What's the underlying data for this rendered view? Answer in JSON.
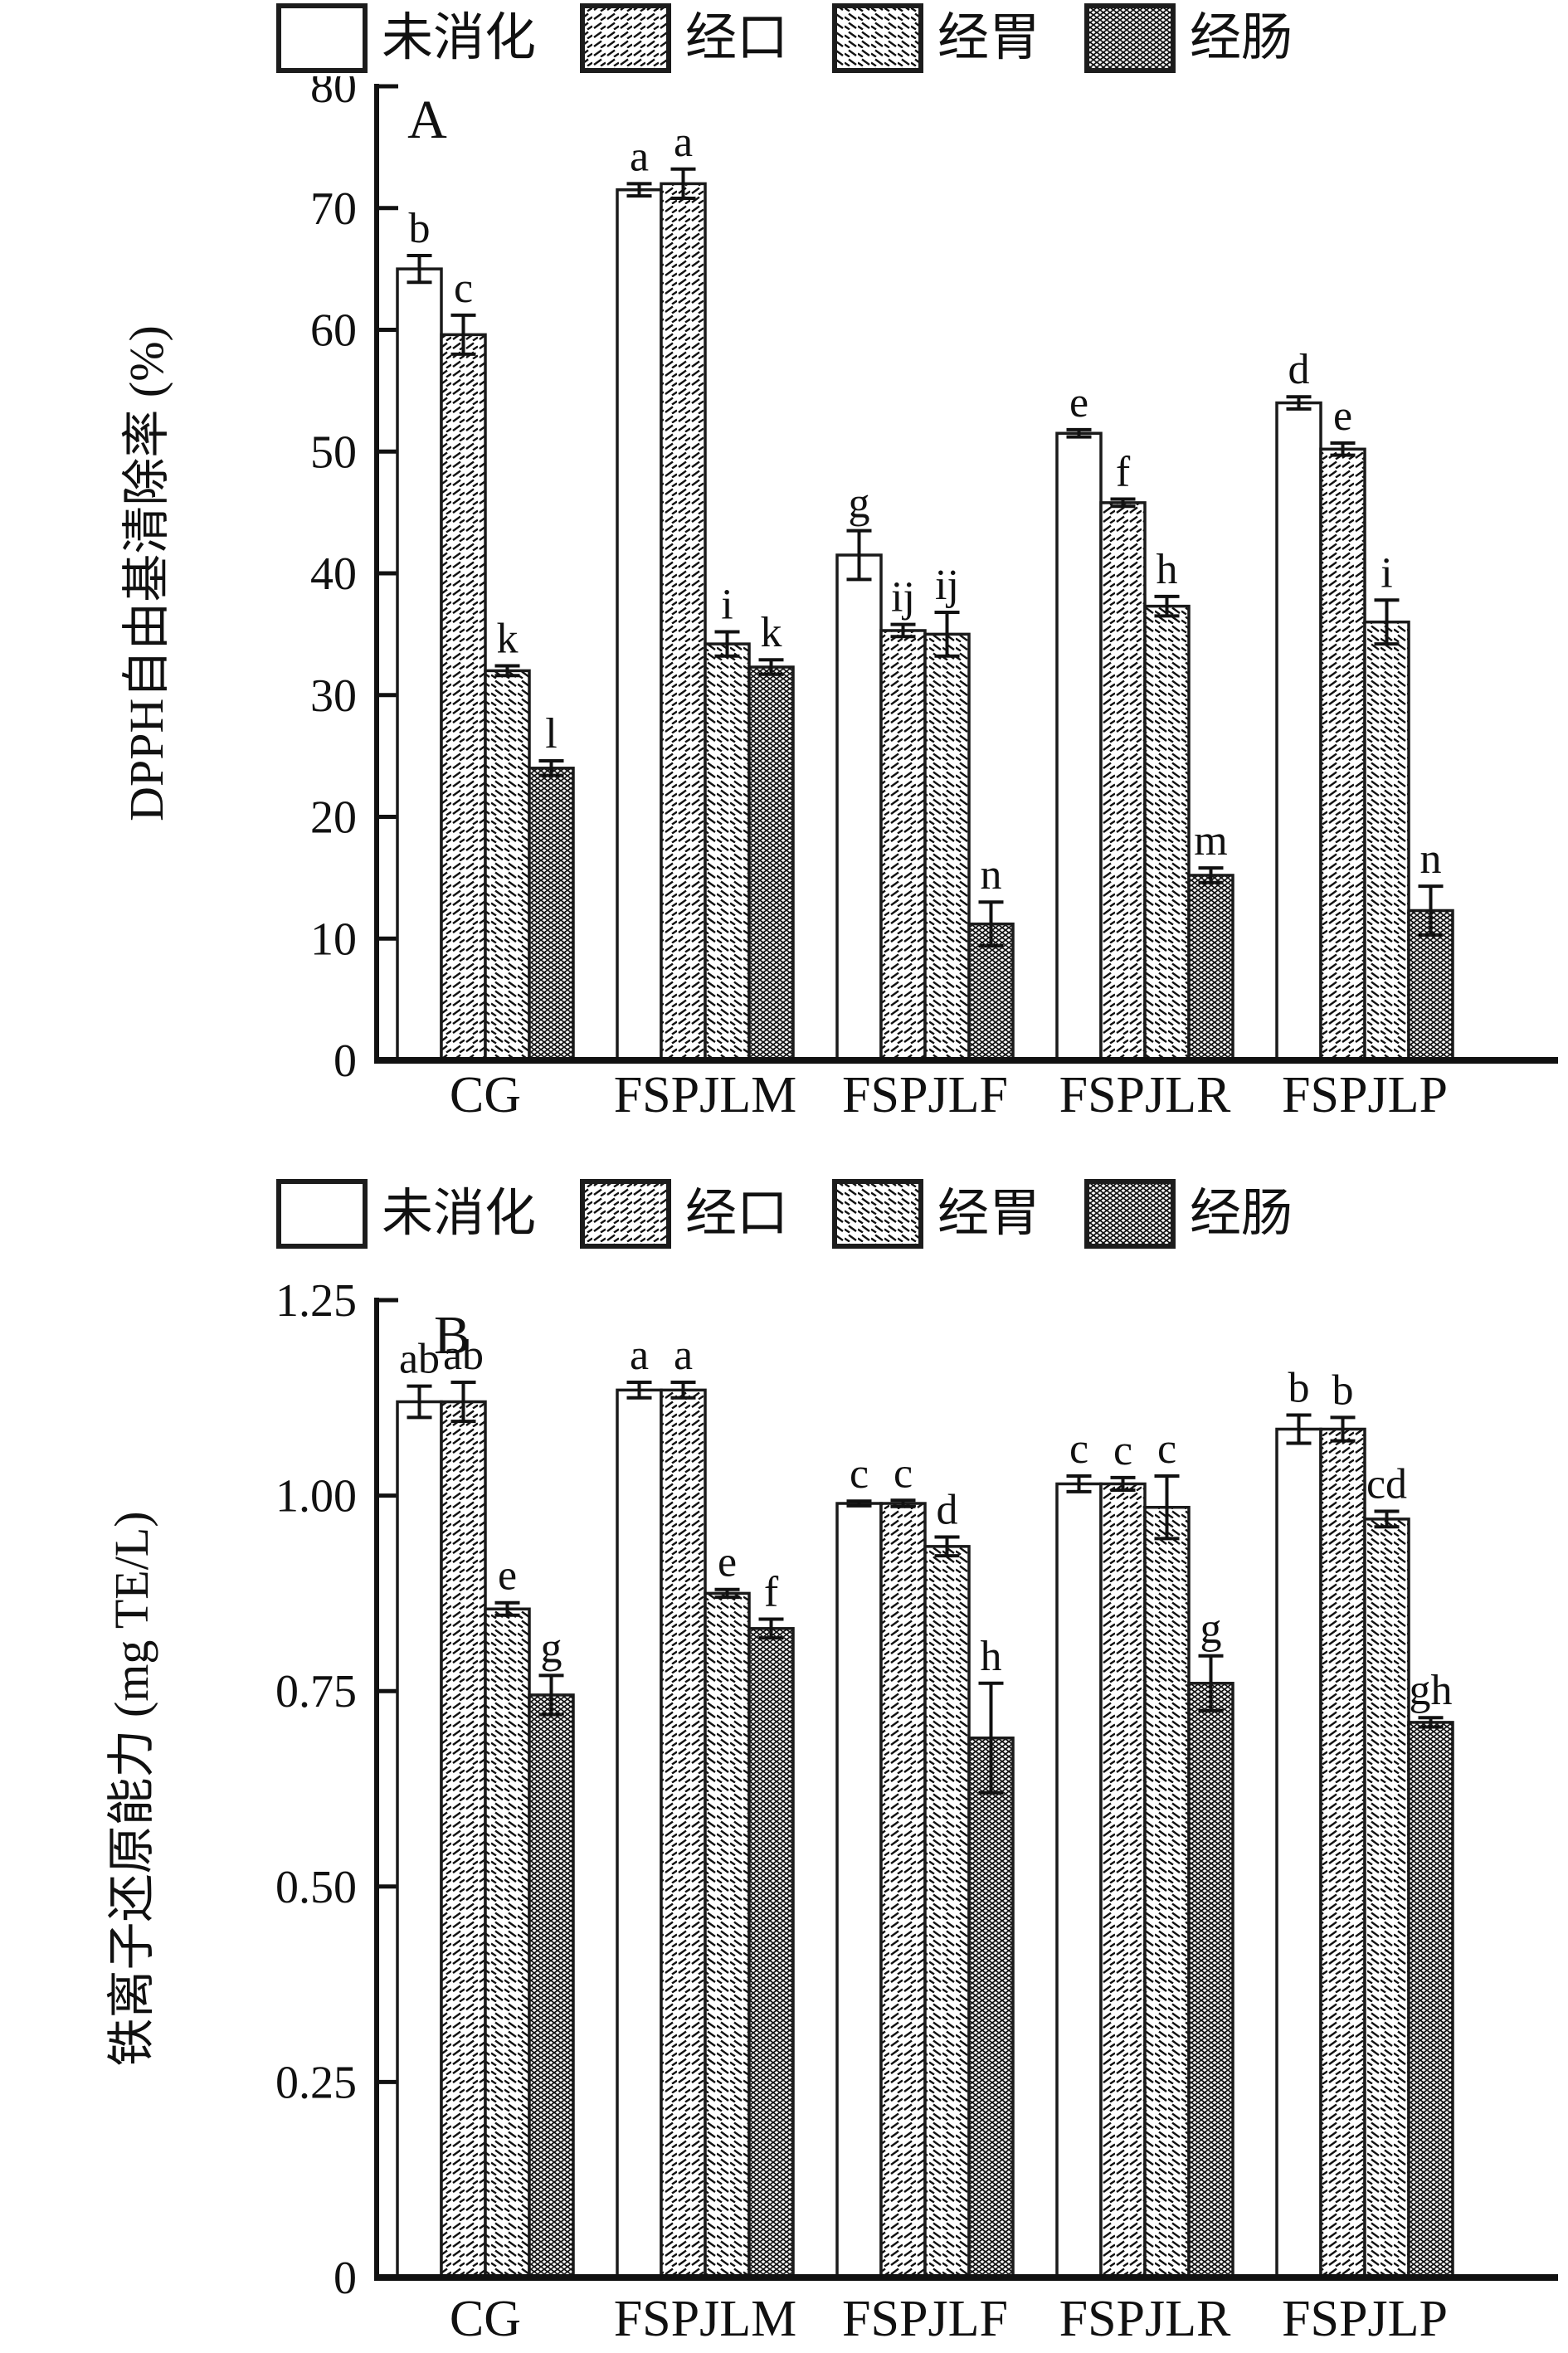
{
  "page": {
    "background": "#ffffff"
  },
  "legend": {
    "items": [
      {
        "label": "未消化",
        "pattern": "open"
      },
      {
        "label": "经口",
        "pattern": "diag-forward"
      },
      {
        "label": "经胃",
        "pattern": "diag-back"
      },
      {
        "label": "经肠",
        "pattern": "dense-cross"
      }
    ]
  },
  "colors": {
    "ink": "#111111",
    "bar_stroke": "#1a1a1a",
    "background": "#ffffff"
  },
  "chart_data": [
    {
      "id": "A",
      "type": "bar",
      "panel_label": "A",
      "title": "",
      "xlabel": "",
      "ylabel": "DPPH自由基清除率 (%)",
      "ylim": [
        0,
        80
      ],
      "yticks": [
        0,
        10,
        20,
        30,
        40,
        50,
        60,
        70,
        80
      ],
      "ytick_labels": [
        "0",
        "10",
        "20",
        "30",
        "40",
        "50",
        "60",
        "70",
        "80"
      ],
      "grid": "off",
      "legend_position": "top",
      "categories": [
        "CG",
        "FSPJLM",
        "FSPJLF",
        "FSPJLR",
        "FSPJLP"
      ],
      "series": [
        {
          "name": "未消化",
          "pattern": "open",
          "values": [
            65.0,
            71.5,
            41.5,
            51.5,
            54.0
          ],
          "errors": [
            1.1,
            0.5,
            2.0,
            0.3,
            0.5
          ],
          "letters": [
            "b",
            "a",
            "g",
            "e",
            "d"
          ]
        },
        {
          "name": "经口",
          "pattern": "diag-forward",
          "values": [
            59.6,
            72.0,
            35.3,
            45.8,
            50.2
          ],
          "errors": [
            1.6,
            1.2,
            0.5,
            0.3,
            0.5
          ],
          "letters": [
            "c",
            "a",
            "ij",
            "f",
            "e"
          ]
        },
        {
          "name": "经胃",
          "pattern": "diag-back",
          "values": [
            32.0,
            34.2,
            35.0,
            37.3,
            36.0
          ],
          "errors": [
            0.4,
            1.0,
            1.8,
            0.8,
            1.8
          ],
          "letters": [
            "k",
            "i",
            "ij",
            "h",
            "i"
          ]
        },
        {
          "name": "经肠",
          "pattern": "dense-cross",
          "values": [
            24.0,
            32.3,
            11.2,
            15.2,
            12.3
          ],
          "errors": [
            0.6,
            0.6,
            1.8,
            0.6,
            2.0
          ],
          "letters": [
            "l",
            "k",
            "n",
            "m",
            "n"
          ]
        }
      ]
    },
    {
      "id": "B",
      "type": "bar",
      "panel_label": "B",
      "title": "",
      "xlabel": "",
      "ylabel": "铁离子还原能力 (mg TE/L)",
      "ylim": [
        0,
        1.25
      ],
      "yticks": [
        0,
        0.25,
        0.5,
        0.75,
        1.0,
        1.25
      ],
      "ytick_labels": [
        "0",
        "0.25",
        "0.50",
        "0.75",
        "1.00",
        "1.25"
      ],
      "grid": "off",
      "legend_position": "top",
      "categories": [
        "CG",
        "FSPJLM",
        "FSPJLF",
        "FSPJLR",
        "FSPJLP"
      ],
      "series": [
        {
          "name": "未消化",
          "pattern": "open",
          "values": [
            1.12,
            1.135,
            0.99,
            1.015,
            1.085
          ],
          "errors": [
            0.02,
            0.01,
            0.003,
            0.01,
            0.018
          ],
          "letters": [
            "ab",
            "a",
            "c",
            "c",
            "b"
          ]
        },
        {
          "name": "经口",
          "pattern": "diag-forward",
          "values": [
            1.12,
            1.135,
            0.99,
            1.015,
            1.085
          ],
          "errors": [
            0.025,
            0.01,
            0.004,
            0.008,
            0.015
          ],
          "letters": [
            "ab",
            "a",
            "c",
            "c",
            "b"
          ]
        },
        {
          "name": "经胃",
          "pattern": "diag-back",
          "values": [
            0.855,
            0.875,
            0.935,
            0.985,
            0.97
          ],
          "errors": [
            0.008,
            0.005,
            0.012,
            0.04,
            0.01
          ],
          "letters": [
            "e",
            "e",
            "d",
            "c",
            "cd"
          ]
        },
        {
          "name": "经肠",
          "pattern": "dense-cross",
          "values": [
            0.745,
            0.83,
            0.69,
            0.76,
            0.71
          ],
          "errors": [
            0.025,
            0.012,
            0.07,
            0.035,
            0.006
          ],
          "letters": [
            "g",
            "f",
            "h",
            "g",
            "gh"
          ]
        }
      ]
    }
  ]
}
